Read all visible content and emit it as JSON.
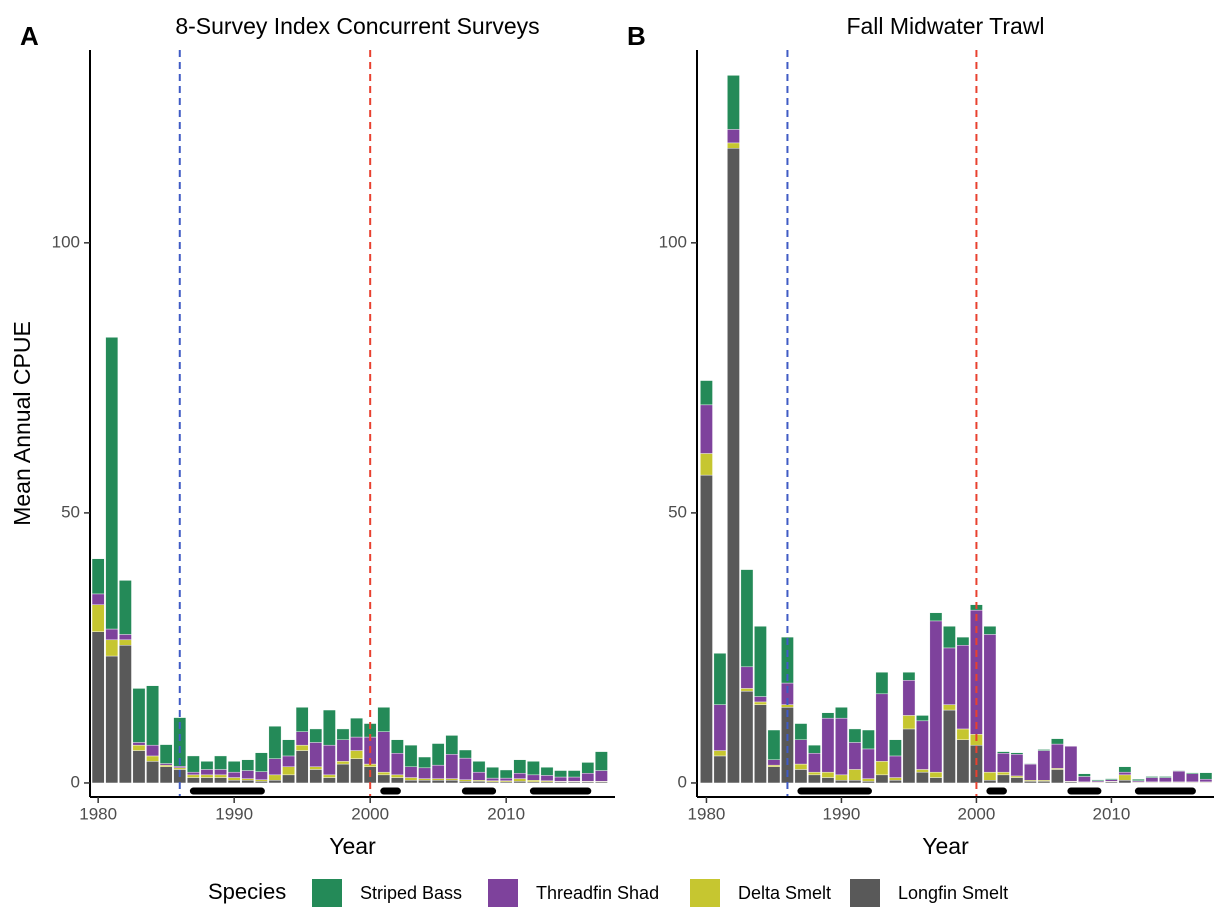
{
  "legend_title": "Species",
  "chart_data": [
    {
      "type": "stacked_bar",
      "panel_label": "A",
      "title": "8-Survey Index Concurrent Surveys",
      "xlabel": "Year",
      "ylabel": "Mean Annual CPUE",
      "x": [
        1980,
        1981,
        1982,
        1983,
        1984,
        1985,
        1986,
        1987,
        1988,
        1989,
        1990,
        1991,
        1992,
        1993,
        1994,
        1995,
        1996,
        1997,
        1998,
        1999,
        2000,
        2001,
        2002,
        2003,
        2004,
        2005,
        2006,
        2007,
        2008,
        2009,
        2010,
        2011,
        2012,
        2013,
        2014,
        2015,
        2016,
        2017
      ],
      "xlim": [
        1979.4,
        2018
      ],
      "xticks": [
        1980,
        1990,
        2000,
        2010
      ],
      "ylim": [
        -2.6,
        135.7
      ],
      "yticks": [
        0,
        50,
        100
      ],
      "vlines": [
        {
          "x": 1986,
          "color": "#3f5bc4"
        },
        {
          "x": 2000,
          "color": "#e8412f"
        }
      ],
      "periods": [
        [
          1987,
          1992
        ],
        [
          2001,
          2002
        ],
        [
          2007,
          2009
        ],
        [
          2012,
          2016
        ]
      ],
      "period_y": -1.5,
      "series": [
        {
          "name": "Striped Bass",
          "color": "#248a58",
          "values": [
            6.5,
            54,
            10,
            10,
            11,
            3.5,
            9,
            3,
            1.5,
            2.5,
            2,
            2,
            3.5,
            6,
            3,
            4.5,
            2.5,
            6.5,
            2,
            3.5,
            2.5,
            4.5,
            2.5,
            4,
            2,
            4,
            3.5,
            1.5,
            2,
            2,
            1.5,
            2.5,
            2.5,
            1.5,
            1.2,
            1.2,
            2,
            3.5
          ]
        },
        {
          "name": "Threadfin Shad",
          "color": "#7e429c",
          "values": [
            2,
            2,
            1,
            0.5,
            2,
            0.3,
            0.3,
            0.5,
            1,
            1,
            1,
            1.5,
            1.5,
            3,
            2,
            2.5,
            4.5,
            5.5,
            4,
            2.5,
            5,
            7.5,
            4,
            2,
            2,
            2.5,
            4.5,
            4,
            1.5,
            0.5,
            0.5,
            1,
            1,
            1,
            0.8,
            0.8,
            1.5,
            2
          ]
        },
        {
          "name": "Delta Smelt",
          "color": "#c6c630",
          "values": [
            5,
            3,
            1,
            1,
            1,
            0.3,
            0.3,
            0.5,
            0.5,
            0.5,
            0.5,
            0.3,
            0.3,
            1,
            1.5,
            1,
            0.5,
            0.5,
            0.5,
            1.5,
            0.5,
            0.5,
            0.5,
            0.5,
            0.3,
            0.3,
            0.3,
            0.3,
            0.2,
            0.2,
            0.2,
            0.5,
            0.3,
            0.2,
            0.1,
            0.1,
            0.1,
            0.1
          ]
        },
        {
          "name": "Longfin Smelt",
          "color": "#595959",
          "values": [
            28,
            23.5,
            25.5,
            6,
            4,
            3,
            2.5,
            1,
            1,
            1,
            0.5,
            0.5,
            0.3,
            0.5,
            1.5,
            6,
            2.5,
            1,
            3.5,
            4.5,
            3,
            1.5,
            1,
            0.5,
            0.5,
            0.5,
            0.5,
            0.3,
            0.3,
            0.2,
            0.2,
            0.3,
            0.2,
            0.2,
            0.2,
            0.2,
            0.2,
            0.2
          ]
        }
      ]
    },
    {
      "type": "stacked_bar",
      "panel_label": "B",
      "title": "Fall Midwater Trawl",
      "xlabel": "Year",
      "x": [
        1980,
        1981,
        1982,
        1983,
        1984,
        1985,
        1986,
        1987,
        1988,
        1989,
        1990,
        1991,
        1992,
        1993,
        1994,
        1995,
        1996,
        1997,
        1998,
        1999,
        2000,
        2001,
        2002,
        2003,
        2004,
        2005,
        2006,
        2007,
        2008,
        2009,
        2010,
        2011,
        2012,
        2013,
        2014,
        2015,
        2016,
        2017
      ],
      "xlim": [
        1979.3,
        2017.6
      ],
      "xticks": [
        1980,
        1990,
        2000,
        2010
      ],
      "ylim": [
        -2.6,
        135.7
      ],
      "yticks": [
        0,
        50,
        100
      ],
      "vlines": [
        {
          "x": 1986,
          "color": "#3f5bc4"
        },
        {
          "x": 2000,
          "color": "#e8412f"
        }
      ],
      "periods": [
        [
          1987,
          1992
        ],
        [
          2001,
          2002
        ],
        [
          2007,
          2009
        ],
        [
          2012,
          2016
        ]
      ],
      "period_y": -1.5,
      "series": [
        {
          "name": "Striped Bass",
          "color": "#248a58",
          "values": [
            4.5,
            9.5,
            10,
            18,
            13,
            5.5,
            8.5,
            3,
            1.5,
            1,
            2,
            2.5,
            3.5,
            4,
            3,
            1.5,
            1,
            1.5,
            4,
            1.5,
            1,
            1.5,
            0.3,
            0.3,
            0.1,
            0.2,
            1,
            0,
            0.5,
            0.2,
            0.2,
            1,
            0.3,
            0.2,
            0.2,
            0.1,
            0.2,
            1.2
          ]
        },
        {
          "name": "Threadfin Shad",
          "color": "#7e429c",
          "values": [
            9,
            8.5,
            2.5,
            4,
            1,
            1,
            4,
            4.5,
            3.5,
            10,
            10.5,
            5,
            5.5,
            12.5,
            4,
            6.5,
            9,
            28,
            10.5,
            15.5,
            23,
            25.5,
            3.5,
            4,
            3,
            5.5,
            4.5,
            6.5,
            1,
            0.2,
            0.3,
            0.5,
            0.2,
            0.8,
            0.8,
            2,
            1.5,
            0.5
          ]
        },
        {
          "name": "Delta Smelt",
          "color": "#c6c630",
          "values": [
            4,
            1,
            1,
            0.5,
            0.5,
            0.3,
            0.5,
            1,
            0.5,
            1,
            1,
            2,
            0.5,
            2.5,
            0.5,
            2.5,
            0.5,
            1,
            1,
            2,
            2,
            1.5,
            0.5,
            0.3,
            0.2,
            0.2,
            0.2,
            0.1,
            0.1,
            0.1,
            0.1,
            1,
            0.1,
            0.1,
            0.1,
            0.1,
            0.1,
            0.1
          ]
        },
        {
          "name": "Longfin Smelt",
          "color": "#595959",
          "values": [
            57,
            5,
            117.5,
            17,
            14.5,
            3,
            14,
            2.5,
            1.5,
            1,
            0.5,
            0.5,
            0.3,
            1.5,
            0.5,
            10,
            2,
            1,
            13.5,
            8,
            7,
            0.5,
            1.5,
            1,
            0.3,
            0.3,
            2.5,
            0.2,
            0.1,
            0.1,
            0.2,
            0.5,
            0.1,
            0.1,
            0.1,
            0.1,
            0.1,
            0.1
          ]
        }
      ]
    }
  ]
}
